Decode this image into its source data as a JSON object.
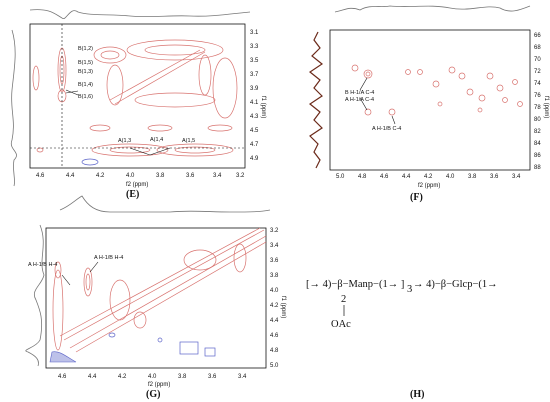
{
  "panels": {
    "E": {
      "letter": "(E)",
      "x_ticks": [
        "4.6",
        "4.4",
        "4.2",
        "4.0",
        "3.8",
        "3.6",
        "3.4",
        "3.2"
      ],
      "y_ticks": [
        "3.1",
        "3.3",
        "3.5",
        "3.7",
        "3.9",
        "4.1",
        "4.3",
        "4.5",
        "4.7",
        "4.9"
      ],
      "xlabel": "f2 (ppm)",
      "ylabel": "f1 (ppm)",
      "annotations": [
        "B(1,2)",
        "B(1,5)",
        "B(1,3)",
        "B(1,4)",
        "B(1,6)",
        "A(1,3",
        "A(1,4",
        "A(1,5"
      ]
    },
    "F": {
      "letter": "(F)",
      "x_ticks": [
        "5.0",
        "4.8",
        "4.6",
        "4.4",
        "4.2",
        "4.0",
        "3.8",
        "3.6",
        "3.4"
      ],
      "y_ticks": [
        "66",
        "68",
        "70",
        "72",
        "74",
        "76",
        "78",
        "80",
        "82",
        "84",
        "86",
        "88"
      ],
      "xlabel": "f2 (ppm)",
      "ylabel": "f1 (ppm)",
      "annotations": [
        "B H-1/A C-4",
        "A  H-1/A C-4",
        "A H-1/B C-4"
      ]
    },
    "G": {
      "letter": "(G)",
      "x_ticks": [
        "4.6",
        "4.4",
        "4.2",
        "4.0",
        "3.8",
        "3.6",
        "3.4"
      ],
      "y_ticks": [
        "3.2",
        "3.4",
        "3.6",
        "3.8",
        "4.0",
        "4.2",
        "4.4",
        "4.6",
        "4.8",
        "5.0"
      ],
      "xlabel": "f2 (ppm)",
      "ylabel": "f1 (ppm)",
      "annotations": [
        "A H-1/B H-4",
        "A H-1/B H-4"
      ]
    },
    "H": {
      "letter": "(H)",
      "structure_main": "[→ 4)−β−Manp−(1→ ]",
      "structure_sub": "3",
      "structure_tail": "→ 4)−β−Glcp−(1→",
      "branch_pos": "2",
      "branch_group": "OAc"
    }
  }
}
